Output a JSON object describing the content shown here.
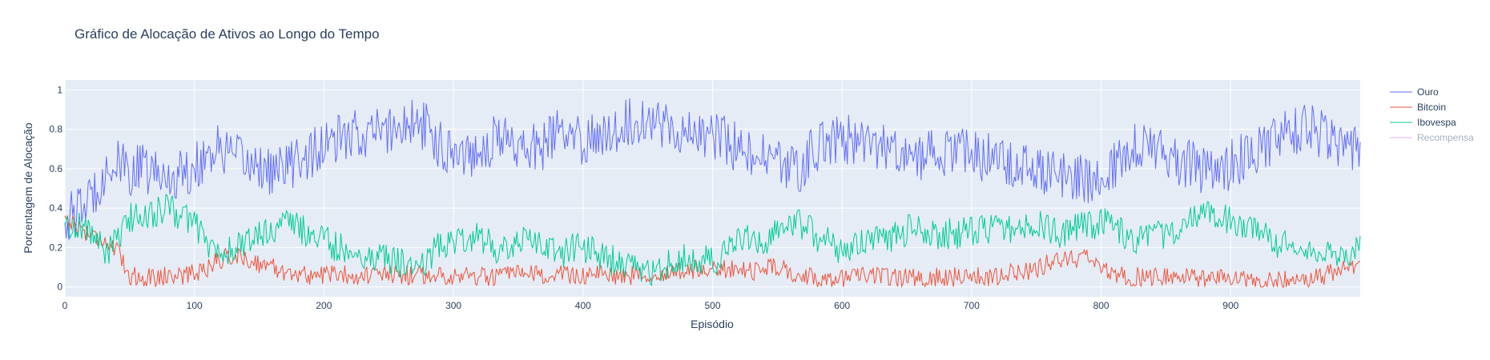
{
  "chart_data": {
    "type": "line",
    "title": "Gráfico de Alocação de Ativos ao Longo do Tempo",
    "xlabel": "Episódio",
    "ylabel": "Porcentagem de Alocação",
    "xlim": [
      0,
      1000
    ],
    "ylim": [
      -0.05,
      1.05
    ],
    "x_ticks": [
      0,
      100,
      200,
      300,
      400,
      500,
      600,
      700,
      800,
      900
    ],
    "y_ticks": [
      0,
      0.2,
      0.4,
      0.6,
      0.8,
      1
    ],
    "y_tick_labels": [
      "0",
      "0.2",
      "0.4",
      "0.6",
      "0.8",
      "1"
    ],
    "grid": true,
    "legend_position": "top-right",
    "plot_background": "#e5ecf6",
    "series": [
      {
        "name": "Ouro",
        "color": "#636efa",
        "visible": true,
        "x_step": 10,
        "values": [
          0.34,
          0.38,
          0.45,
          0.58,
          0.62,
          0.58,
          0.6,
          0.57,
          0.55,
          0.58,
          0.6,
          0.68,
          0.7,
          0.65,
          0.63,
          0.62,
          0.58,
          0.6,
          0.65,
          0.68,
          0.7,
          0.74,
          0.76,
          0.78,
          0.78,
          0.8,
          0.82,
          0.83,
          0.8,
          0.72,
          0.7,
          0.68,
          0.7,
          0.74,
          0.76,
          0.72,
          0.7,
          0.72,
          0.78,
          0.75,
          0.74,
          0.76,
          0.8,
          0.82,
          0.84,
          0.86,
          0.84,
          0.8,
          0.78,
          0.76,
          0.78,
          0.74,
          0.7,
          0.66,
          0.66,
          0.62,
          0.6,
          0.62,
          0.7,
          0.74,
          0.76,
          0.74,
          0.72,
          0.7,
          0.7,
          0.66,
          0.66,
          0.68,
          0.68,
          0.68,
          0.66,
          0.66,
          0.64,
          0.64,
          0.62,
          0.6,
          0.58,
          0.58,
          0.56,
          0.54,
          0.56,
          0.62,
          0.7,
          0.72,
          0.7,
          0.68,
          0.64,
          0.62,
          0.6,
          0.6,
          0.62,
          0.66,
          0.7,
          0.72,
          0.76,
          0.78,
          0.8,
          0.78,
          0.74,
          0.72,
          0.72
        ]
      },
      {
        "name": "Bitcoin",
        "color": "#ef553b",
        "visible": true,
        "x_step": 10,
        "values": [
          0.36,
          0.3,
          0.27,
          0.24,
          0.18,
          0.06,
          0.05,
          0.05,
          0.06,
          0.06,
          0.07,
          0.1,
          0.14,
          0.16,
          0.14,
          0.12,
          0.1,
          0.08,
          0.06,
          0.06,
          0.06,
          0.07,
          0.06,
          0.06,
          0.06,
          0.06,
          0.06,
          0.06,
          0.06,
          0.06,
          0.06,
          0.06,
          0.05,
          0.05,
          0.06,
          0.06,
          0.06,
          0.06,
          0.06,
          0.06,
          0.06,
          0.06,
          0.06,
          0.06,
          0.06,
          0.07,
          0.07,
          0.07,
          0.08,
          0.09,
          0.1,
          0.09,
          0.08,
          0.08,
          0.1,
          0.1,
          0.08,
          0.06,
          0.04,
          0.04,
          0.05,
          0.05,
          0.05,
          0.05,
          0.05,
          0.05,
          0.05,
          0.05,
          0.05,
          0.05,
          0.05,
          0.05,
          0.06,
          0.07,
          0.08,
          0.09,
          0.12,
          0.15,
          0.14,
          0.14,
          0.1,
          0.06,
          0.05,
          0.05,
          0.05,
          0.05,
          0.05,
          0.05,
          0.04,
          0.04,
          0.04,
          0.04,
          0.03,
          0.03,
          0.03,
          0.04,
          0.04,
          0.05,
          0.08,
          0.1,
          0.1
        ]
      },
      {
        "name": "Ibovespa",
        "color": "#00cc96",
        "visible": true,
        "x_step": 10,
        "values": [
          0.3,
          0.32,
          0.28,
          0.18,
          0.22,
          0.35,
          0.36,
          0.38,
          0.4,
          0.36,
          0.33,
          0.22,
          0.16,
          0.19,
          0.23,
          0.26,
          0.3,
          0.32,
          0.3,
          0.26,
          0.24,
          0.2,
          0.18,
          0.16,
          0.16,
          0.14,
          0.12,
          0.11,
          0.14,
          0.22,
          0.24,
          0.26,
          0.25,
          0.21,
          0.18,
          0.22,
          0.24,
          0.22,
          0.16,
          0.19,
          0.2,
          0.18,
          0.14,
          0.12,
          0.1,
          0.07,
          0.09,
          0.13,
          0.14,
          0.15,
          0.12,
          0.17,
          0.22,
          0.26,
          0.24,
          0.28,
          0.32,
          0.32,
          0.26,
          0.22,
          0.19,
          0.21,
          0.23,
          0.25,
          0.25,
          0.29,
          0.29,
          0.27,
          0.27,
          0.27,
          0.29,
          0.29,
          0.3,
          0.29,
          0.3,
          0.31,
          0.3,
          0.27,
          0.3,
          0.32,
          0.32,
          0.32,
          0.25,
          0.23,
          0.25,
          0.27,
          0.31,
          0.33,
          0.36,
          0.36,
          0.34,
          0.3,
          0.27,
          0.25,
          0.21,
          0.18,
          0.16,
          0.17,
          0.18,
          0.18,
          0.18
        ]
      },
      {
        "name": "Recompensa",
        "color": "#ab63fa",
        "visible": false,
        "values": []
      }
    ]
  }
}
